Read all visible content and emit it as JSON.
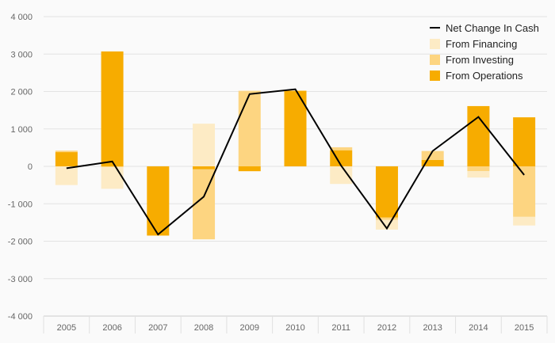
{
  "chart_data": {
    "type": "bar",
    "stacked": true,
    "categories": [
      "2005",
      "2006",
      "2007",
      "2008",
      "2009",
      "2010",
      "2011",
      "2012",
      "2013",
      "2014",
      "2015"
    ],
    "series": [
      {
        "name": "From Operations",
        "kind": "bar",
        "color": "#f7ac00",
        "values": [
          380,
          3070,
          -1850,
          -80,
          -130,
          2020,
          430,
          -1370,
          170,
          1610,
          1310
        ]
      },
      {
        "name": "From Investing",
        "kind": "bar",
        "color": "#fdd581",
        "values": [
          40,
          -20,
          0,
          -1870,
          2010,
          0,
          80,
          -60,
          240,
          -130,
          -1350
        ]
      },
      {
        "name": "From Financing",
        "kind": "bar",
        "color": "#fdebc5",
        "values": [
          -500,
          -580,
          0,
          1140,
          20,
          0,
          -470,
          -260,
          0,
          -170,
          -230
        ]
      },
      {
        "name": "Net Change In Cash",
        "kind": "line",
        "color": "#000000",
        "values": [
          -50,
          130,
          -1820,
          -810,
          1930,
          2060,
          20,
          -1660,
          410,
          1320,
          -230
        ]
      }
    ],
    "ylim": [
      -4000,
      4000
    ],
    "yticks": [
      -4000,
      -3000,
      -2000,
      -1000,
      0,
      1000,
      2000,
      3000,
      4000
    ],
    "ytick_labels": [
      "-4 000",
      "-3 000",
      "-2 000",
      "-1 000",
      "0",
      "1 000",
      "2 000",
      "3 000",
      "4 000"
    ],
    "legend": {
      "position": "top-right",
      "order": [
        "Net Change In Cash",
        "From Financing",
        "From Investing",
        "From Operations"
      ]
    },
    "grid": true,
    "title": "",
    "xlabel": "",
    "ylabel": ""
  }
}
